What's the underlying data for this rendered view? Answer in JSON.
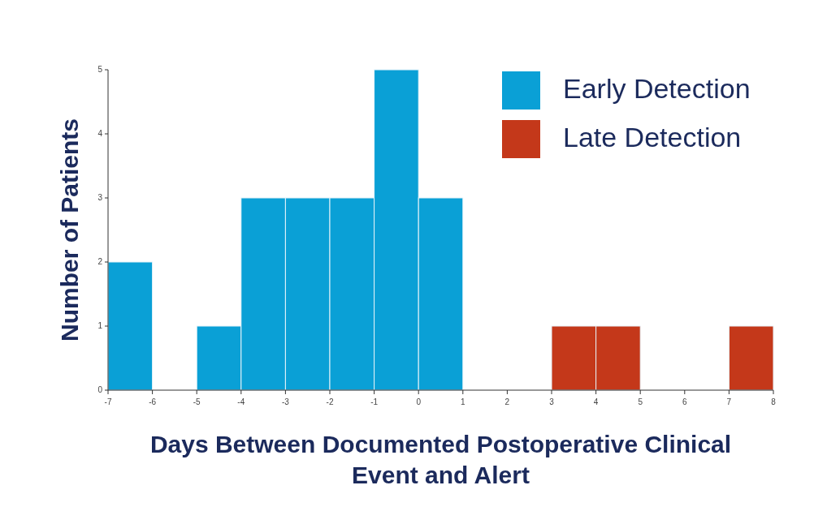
{
  "chart_data": {
    "type": "histogram",
    "xlabel": "Days Between Documented Postoperative Clinical Event and Alert",
    "ylabel": "Number of Patients",
    "bins": [
      -7,
      -6,
      -5,
      -4,
      -3,
      -2,
      -1,
      0,
      1,
      2,
      3,
      4,
      5,
      6,
      7,
      8
    ],
    "series": [
      {
        "name": "Early Detection",
        "color": "#0aa0d6",
        "values": [
          2,
          0,
          1,
          3,
          3,
          3,
          5,
          3,
          null,
          null,
          null,
          null,
          null,
          null,
          null
        ]
      },
      {
        "name": "Late Detection",
        "color": "#c4381a",
        "values": [
          null,
          null,
          null,
          null,
          null,
          null,
          null,
          null,
          0,
          0,
          1,
          1,
          0,
          0,
          1
        ]
      }
    ],
    "xlim": [
      -7,
      8
    ],
    "xticks": [
      -7,
      -6,
      -5,
      -4,
      -3,
      -2,
      -1,
      0,
      1,
      2,
      3,
      4,
      5,
      6,
      7,
      8
    ],
    "ylim": [
      0,
      5
    ],
    "yticks": [
      0,
      1,
      2,
      3,
      4,
      5
    ],
    "grid": false,
    "legend": "top right"
  }
}
